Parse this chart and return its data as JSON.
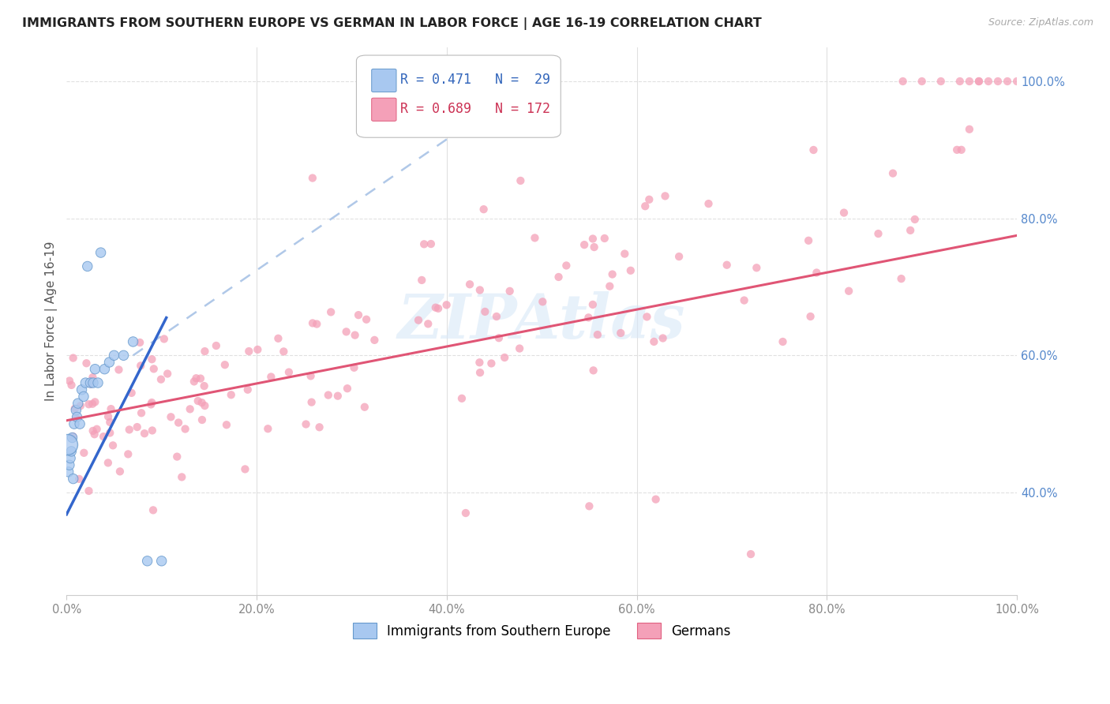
{
  "title": "IMMIGRANTS FROM SOUTHERN EUROPE VS GERMAN IN LABOR FORCE | AGE 16-19 CORRELATION CHART",
  "source": "Source: ZipAtlas.com",
  "ylabel": "In Labor Force | Age 16-19",
  "xlim": [
    0,
    1.0
  ],
  "ylim": [
    0.25,
    1.05
  ],
  "xtick_vals": [
    0.0,
    0.2,
    0.4,
    0.6,
    0.8,
    1.0
  ],
  "xtick_labels": [
    "0.0%",
    "20.0%",
    "40.0%",
    "60.0%",
    "80.0%",
    "100.0%"
  ],
  "ytick_vals_right": [
    0.4,
    0.6,
    0.8,
    1.0
  ],
  "ytick_labels_right": [
    "40.0%",
    "60.0%",
    "80.0%",
    "100.0%"
  ],
  "blue_R": 0.471,
  "blue_N": 29,
  "pink_R": 0.689,
  "pink_N": 172,
  "blue_color": "#A8C8F0",
  "pink_color": "#F4A0B8",
  "blue_line_color": "#3366CC",
  "pink_line_color": "#E05575",
  "diag_color": "#B0C8E8",
  "legend_label_blue": "Immigrants from Southern Europe",
  "legend_label_pink": "Germans",
  "watermark_color": "#D8E8F8",
  "grid_color": "#E0E0E0"
}
